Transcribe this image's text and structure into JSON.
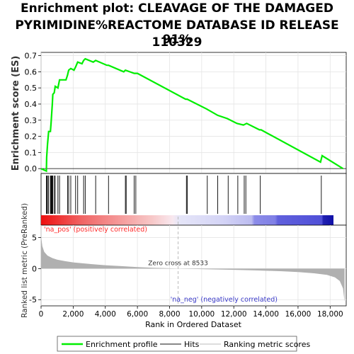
{
  "title_lines": [
    "Enrichment plot: CLEAVAGE OF THE DAMAGED",
    "PYRIMIDINE%REACTOME DATABASE ID RELEASE 91%",
    "110329"
  ],
  "chart_data": {
    "type": "line",
    "colors": {
      "es_line": "#00ee00",
      "hits": "#000000",
      "metric_fill": "#b0b0b0",
      "pos_label": "#ff2a2a",
      "neg_label": "#3a3ac8",
      "zero_line": "#bbbbbb"
    },
    "x_ticks": [
      0,
      2000,
      4000,
      6000,
      8000,
      10000,
      12000,
      14000,
      16000,
      18000
    ],
    "x_tick_labels": [
      "0",
      "2,000",
      "4,000",
      "6,000",
      "8,000",
      "10,000",
      "12,000",
      "14,000",
      "16,000",
      "18,000"
    ],
    "xlim": [
      0,
      19000
    ],
    "xlabel": "Rank in Ordered Dataset",
    "es_panel": {
      "ylabel": "Enrichment score (ES)",
      "ylim": [
        -0.03,
        0.72
      ],
      "y_ticks": [
        0.0,
        0.1,
        0.2,
        0.3,
        0.4,
        0.5,
        0.6,
        0.7
      ],
      "y_tick_labels": [
        "0.0",
        "0.1",
        "0.2",
        "0.3",
        "0.4",
        "0.5",
        "0.6",
        "0.7"
      ],
      "points": [
        [
          0,
          0.0
        ],
        [
          330,
          -0.015
        ],
        [
          350,
          0.07
        ],
        [
          400,
          0.15
        ],
        [
          470,
          0.23
        ],
        [
          580,
          0.23
        ],
        [
          620,
          0.28
        ],
        [
          660,
          0.34
        ],
        [
          700,
          0.4
        ],
        [
          730,
          0.46
        ],
        [
          820,
          0.47
        ],
        [
          880,
          0.51
        ],
        [
          1050,
          0.5
        ],
        [
          1150,
          0.55
        ],
        [
          1550,
          0.55
        ],
        [
          1650,
          0.58
        ],
        [
          1720,
          0.61
        ],
        [
          1850,
          0.62
        ],
        [
          2050,
          0.61
        ],
        [
          2150,
          0.63
        ],
        [
          2280,
          0.66
        ],
        [
          2550,
          0.65
        ],
        [
          2650,
          0.67
        ],
        [
          2750,
          0.68
        ],
        [
          3250,
          0.66
        ],
        [
          3400,
          0.67
        ],
        [
          4100,
          0.64
        ],
        [
          4200,
          0.64
        ],
        [
          5150,
          0.6
        ],
        [
          5250,
          0.61
        ],
        [
          5800,
          0.59
        ],
        [
          6000,
          0.59
        ],
        [
          9000,
          0.43
        ],
        [
          9100,
          0.43
        ],
        [
          10300,
          0.37
        ],
        [
          11000,
          0.33
        ],
        [
          11600,
          0.31
        ],
        [
          12200,
          0.28
        ],
        [
          12600,
          0.27
        ],
        [
          12800,
          0.28
        ],
        [
          13600,
          0.24
        ],
        [
          13700,
          0.24
        ],
        [
          17400,
          0.04
        ],
        [
          17500,
          0.08
        ],
        [
          18800,
          0.0
        ]
      ]
    },
    "hits": [
      330,
      350,
      400,
      470,
      580,
      620,
      660,
      700,
      730,
      820,
      880,
      1050,
      1150,
      1650,
      1720,
      1850,
      2150,
      2280,
      2650,
      2750,
      3400,
      4200,
      5250,
      5300,
      5800,
      5900,
      9050,
      9100,
      10350,
      11000,
      11650,
      12250,
      12650,
      12750,
      13650,
      17450
    ],
    "metric_panel": {
      "ylabel": "Ranked list metric (PreRanked)",
      "ylim": [
        -6,
        7
      ],
      "y_ticks": [
        -5,
        0,
        5
      ],
      "y_tick_labels": [
        "-5",
        "0",
        "5"
      ],
      "zero_cross": 8533,
      "zero_cross_label": "Zero cross at 8533",
      "pos_label": "'na_pos' (positively correlated)",
      "neg_label": "'na_neg' (negatively correlated)",
      "metric_points": [
        [
          0,
          5.2
        ],
        [
          80,
          3.6
        ],
        [
          200,
          2.7
        ],
        [
          400,
          2.1
        ],
        [
          700,
          1.7
        ],
        [
          1000,
          1.45
        ],
        [
          1500,
          1.2
        ],
        [
          2000,
          1.0
        ],
        [
          3000,
          0.75
        ],
        [
          4000,
          0.55
        ],
        [
          5000,
          0.4
        ],
        [
          6000,
          0.25
        ],
        [
          7000,
          0.14
        ],
        [
          8000,
          0.05
        ],
        [
          8533,
          0.0
        ],
        [
          9500,
          -0.06
        ],
        [
          10500,
          -0.12
        ],
        [
          12000,
          -0.2
        ],
        [
          13500,
          -0.3
        ],
        [
          15000,
          -0.42
        ],
        [
          16000,
          -0.55
        ],
        [
          17000,
          -0.75
        ],
        [
          17800,
          -1.0
        ],
        [
          18300,
          -1.4
        ],
        [
          18600,
          -2.0
        ],
        [
          18800,
          -3.2
        ],
        [
          18900,
          -5.4
        ]
      ]
    },
    "legend": {
      "items": [
        "Enrichment profile",
        "Hits",
        "Ranking metric scores"
      ],
      "placement": "bottom"
    }
  }
}
